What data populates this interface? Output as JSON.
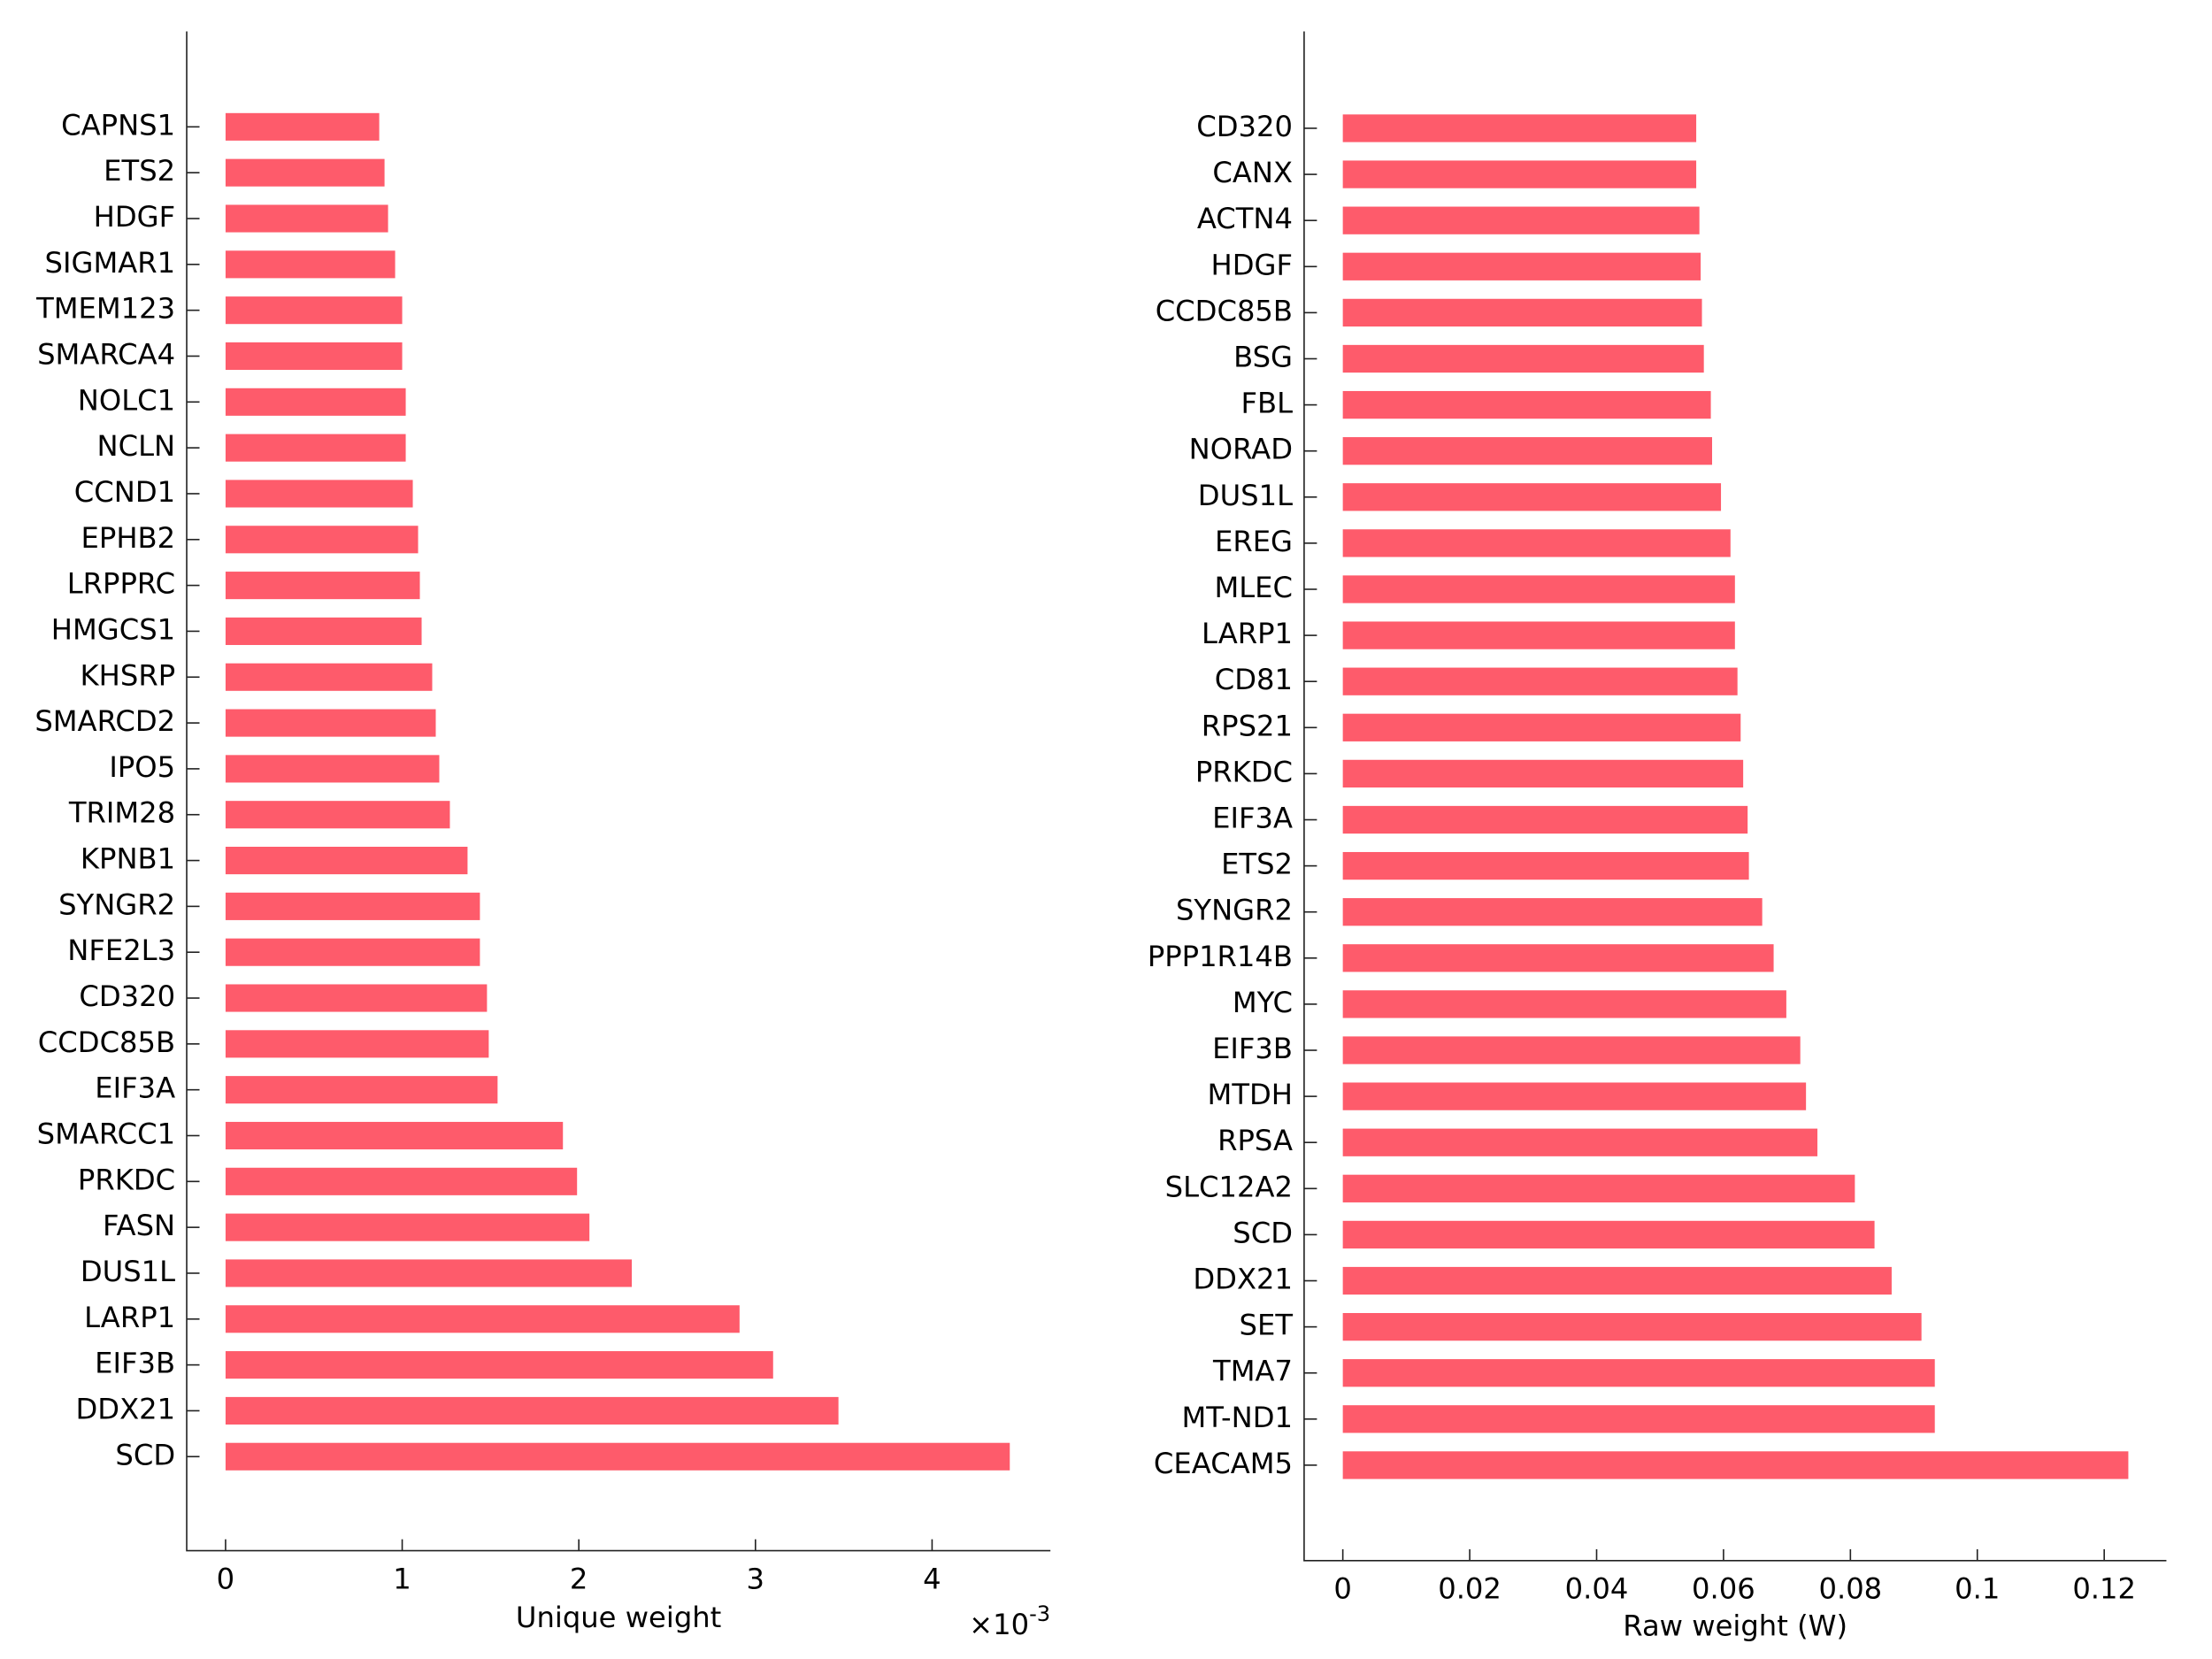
{
  "chart_data": [
    {
      "type": "bar",
      "orientation": "horizontal",
      "xlabel": "Unique weight",
      "x_multiplier": "×10",
      "x_multiplier_exponent": "-3",
      "color": "#fe5b6b",
      "categories": [
        "CAPNS1",
        "ETS2",
        "HDGF",
        "SIGMAR1",
        "TMEM123",
        "SMARCA4",
        "NOLC1",
        "NCLN",
        "CCND1",
        "EPHB2",
        "LRPPRC",
        "HMGCS1",
        "KHSRP",
        "SMARCD2",
        "IPO5",
        "TRIM28",
        "KPNB1",
        "SYNGR2",
        "NFE2L3",
        "CD320",
        "CCDC85B",
        "EIF3A",
        "SMARCC1",
        "PRKDC",
        "FASN",
        "DUS1L",
        "LARP1",
        "EIF3B",
        "DDX21",
        "SCD"
      ],
      "values": [
        0.87,
        0.9,
        0.92,
        0.96,
        1.0,
        1.0,
        1.02,
        1.02,
        1.06,
        1.09,
        1.1,
        1.11,
        1.17,
        1.19,
        1.21,
        1.27,
        1.37,
        1.44,
        1.44,
        1.48,
        1.49,
        1.54,
        1.91,
        1.99,
        2.06,
        2.3,
        2.91,
        3.1,
        3.47,
        4.44
      ],
      "xlim": [
        -0.22,
        4.67
      ],
      "xticks": [
        0,
        1,
        2,
        3,
        4
      ]
    },
    {
      "type": "bar",
      "orientation": "horizontal",
      "xlabel": "Raw weight (W)",
      "color": "#fe5b6b",
      "categories": [
        "CD320",
        "CANX",
        "ACTN4",
        "HDGF",
        "CCDC85B",
        "BSG",
        "FBL",
        "NORAD",
        "DUS1L",
        "EREG",
        "MLEC",
        "LARP1",
        "CD81",
        "RPS21",
        "PRKDC",
        "EIF3A",
        "ETS2",
        "SYNGR2",
        "PPP1R14B",
        "MYC",
        "EIF3B",
        "MTDH",
        "RPSA",
        "SLC12A2",
        "SCD",
        "DDX21",
        "SET",
        "TMA7",
        "MT-ND1",
        "CEACAM5"
      ],
      "values": [
        0.0557,
        0.0557,
        0.0562,
        0.0564,
        0.0566,
        0.0569,
        0.058,
        0.0582,
        0.0596,
        0.0611,
        0.0618,
        0.0618,
        0.0622,
        0.0627,
        0.0631,
        0.0638,
        0.064,
        0.0661,
        0.0679,
        0.0699,
        0.0721,
        0.073,
        0.0748,
        0.0807,
        0.0838,
        0.0865,
        0.0912,
        0.0933,
        0.0933,
        0.1238
      ],
      "xlim": [
        -0.0061,
        0.1298
      ],
      "xticks": [
        0,
        0.02,
        0.04,
        0.06,
        0.08,
        0.1,
        0.12
      ]
    }
  ]
}
